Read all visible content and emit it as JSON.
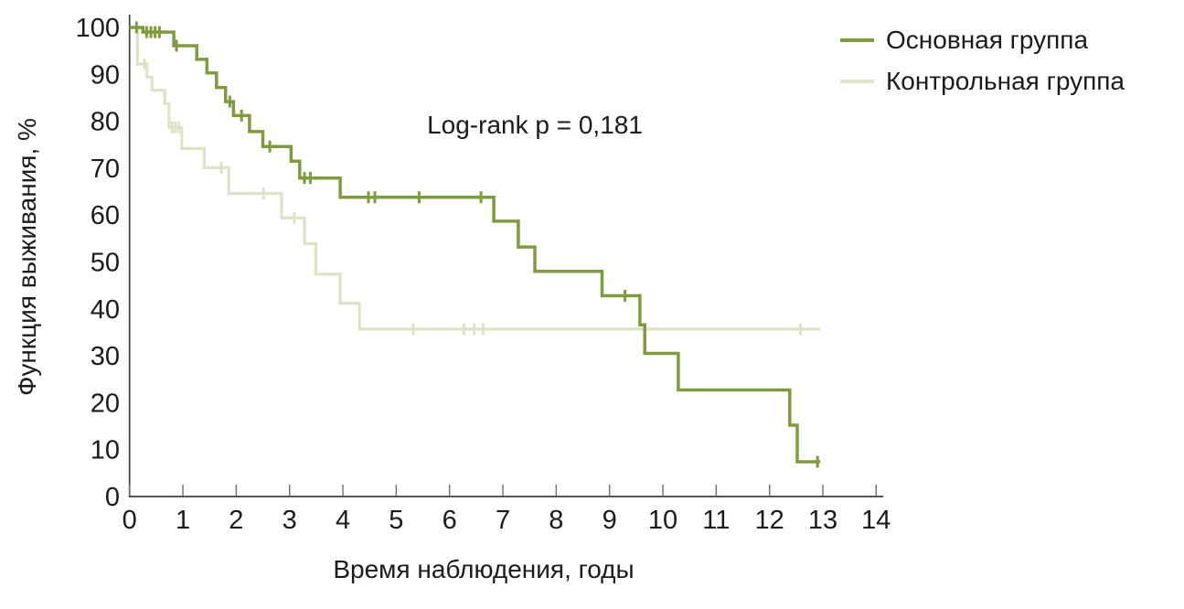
{
  "chart_data": {
    "type": "line",
    "subtype": "kaplan-meier-step",
    "title": "",
    "annotation": "Log-rank p = 0,181",
    "xlabel": "Время наблюдения, годы",
    "ylabel": "Функция выживания, %",
    "xlim": [
      0,
      14
    ],
    "ylim": [
      0,
      100
    ],
    "x_ticks": [
      0,
      1,
      2,
      3,
      4,
      5,
      6,
      7,
      8,
      9,
      10,
      11,
      12,
      13,
      14
    ],
    "y_ticks": [
      0,
      10,
      20,
      30,
      40,
      50,
      60,
      70,
      80,
      90,
      100
    ],
    "grid": false,
    "legend_position": "top-right",
    "series": [
      {
        "name": "Основная группа",
        "color": "#7E9C3E",
        "points": [
          [
            0,
            100
          ],
          [
            0.25,
            99
          ],
          [
            0.83,
            96.1
          ],
          [
            1.26,
            93.2
          ],
          [
            1.45,
            90.3
          ],
          [
            1.63,
            87.2
          ],
          [
            1.8,
            84.2
          ],
          [
            1.95,
            81.2
          ],
          [
            2.25,
            77.8
          ],
          [
            2.5,
            74.6
          ],
          [
            3.03,
            71.5
          ],
          [
            3.19,
            67.9
          ],
          [
            3.95,
            63.8
          ],
          [
            6.83,
            58.7
          ],
          [
            7.29,
            53.2
          ],
          [
            7.6,
            48.0
          ],
          [
            8.86,
            42.8
          ],
          [
            9.57,
            36.6
          ],
          [
            9.66,
            30.5
          ],
          [
            10.29,
            22.7
          ],
          [
            12.38,
            15.2
          ],
          [
            12.52,
            7.4
          ],
          [
            12.95,
            7.4
          ]
        ],
        "censors": [
          [
            0.13,
            100
          ],
          [
            0.32,
            99
          ],
          [
            0.4,
            99
          ],
          [
            0.48,
            99
          ],
          [
            0.56,
            99
          ],
          [
            0.88,
            96.1
          ],
          [
            1.88,
            84.2
          ],
          [
            2.1,
            81.2
          ],
          [
            2.63,
            74.6
          ],
          [
            3.28,
            67.9
          ],
          [
            3.39,
            67.9
          ],
          [
            4.48,
            63.8
          ],
          [
            4.6,
            63.8
          ],
          [
            5.43,
            63.8
          ],
          [
            6.59,
            63.8
          ],
          [
            9.29,
            42.8
          ],
          [
            12.9,
            7.4
          ]
        ]
      },
      {
        "name": "Контрольная группа",
        "color": "#DCE4C6",
        "points": [
          [
            0,
            100
          ],
          [
            0.15,
            92.2
          ],
          [
            0.33,
            89.4
          ],
          [
            0.42,
            86.6
          ],
          [
            0.66,
            83.8
          ],
          [
            0.74,
            78.7
          ],
          [
            0.98,
            74.2
          ],
          [
            1.4,
            70.1
          ],
          [
            1.86,
            64.6
          ],
          [
            2.85,
            59.4
          ],
          [
            3.28,
            53.9
          ],
          [
            3.49,
            47.4
          ],
          [
            3.95,
            41.2
          ],
          [
            4.31,
            35.7
          ],
          [
            12.95,
            35.7
          ]
        ],
        "censors": [
          [
            0.28,
            92.2
          ],
          [
            0.8,
            78.7
          ],
          [
            0.86,
            78.7
          ],
          [
            0.92,
            78.7
          ],
          [
            1.72,
            70.1
          ],
          [
            2.51,
            64.6
          ],
          [
            3.09,
            59.4
          ],
          [
            5.32,
            35.7
          ],
          [
            6.27,
            35.7
          ],
          [
            6.46,
            35.7
          ],
          [
            6.63,
            35.7
          ],
          [
            12.58,
            35.7
          ]
        ]
      }
    ]
  }
}
